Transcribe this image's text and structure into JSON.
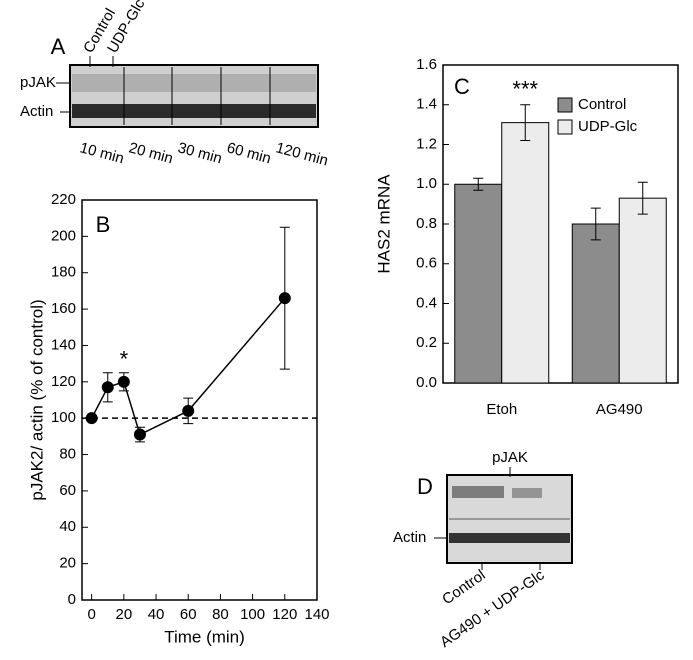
{
  "blot_a": {
    "panel": "A",
    "rows": [
      "pJAK",
      "Actin"
    ],
    "lanes": [
      "Control",
      "UDP-Glc"
    ],
    "times": [
      "10 min",
      "20 min",
      "30 min",
      "60 min",
      "120 min"
    ]
  },
  "chart_data": [
    {
      "type": "line",
      "panel": "B",
      "xlabel": "Time (min)",
      "ylabel": "pJAK2/ actin (% of control)",
      "x": [
        0,
        10,
        20,
        30,
        60,
        120
      ],
      "values": [
        100,
        117,
        120,
        91,
        104,
        166
      ],
      "errors": [
        0,
        8,
        5,
        4,
        7,
        39
      ],
      "color": "#000000",
      "xlim": [
        -6,
        140
      ],
      "xticks": [
        0,
        20,
        40,
        60,
        80,
        100,
        120,
        140
      ],
      "ylim": [
        0,
        220
      ],
      "yticks": [
        0,
        20,
        40,
        60,
        80,
        100,
        120,
        140,
        160,
        180,
        200,
        220
      ],
      "hline": 100,
      "annotation": "*"
    },
    {
      "type": "bar",
      "panel": "C",
      "ylabel": "HAS2 mRNA",
      "categories": [
        "Etoh",
        "AG490"
      ],
      "series": [
        {
          "name": "Control",
          "color": "#8c8c8c",
          "values": [
            1.0,
            0.8
          ],
          "errors": [
            0.03,
            0.08
          ]
        },
        {
          "name": "UDP-Glc",
          "color": "#ececec",
          "values": [
            1.31,
            0.93
          ],
          "errors": [
            0.09,
            0.08
          ]
        }
      ],
      "ylim": [
        0,
        1.6
      ],
      "yticks": [
        {
          "value": 0,
          "label": "0.0"
        },
        {
          "value": 0.2,
          "label": "0.2"
        },
        {
          "value": 0.4,
          "label": "0.4"
        },
        {
          "value": 0.6,
          "label": "0.6"
        },
        {
          "value": 0.8,
          "label": "0.8"
        },
        {
          "value": 1,
          "label": "1.0"
        },
        {
          "value": 1.2,
          "label": "1.2"
        },
        {
          "value": 1.4,
          "label": "1.4"
        },
        {
          "value": 1.6,
          "label": "1.6"
        }
      ],
      "legend": "upper right",
      "annotation": "***"
    }
  ],
  "blot_d": {
    "panel": "D",
    "top_label": "pJAK",
    "row_label": "Actin",
    "lanes": [
      "Control",
      "AG490 + UDP-Glc"
    ]
  }
}
